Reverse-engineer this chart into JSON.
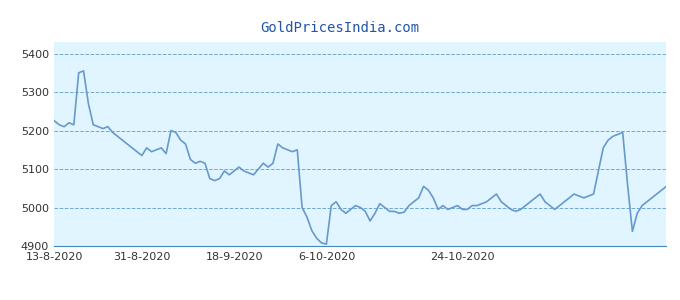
{
  "title": "GoldPricesIndia.com",
  "bg_color": "#e0f5ff",
  "line_color": "#6699cc",
  "grid_color": "#4488bb",
  "ylim": [
    4900,
    5430
  ],
  "yticks": [
    4900,
    5000,
    5100,
    5200,
    5300,
    5400
  ],
  "xtick_labels": [
    "13-8-2020",
    "31-8-2020",
    "18-9-2020",
    "6-10-2020",
    "24-10-2020"
  ],
  "prices": [
    5225,
    5215,
    5210,
    5220,
    5215,
    5350,
    5355,
    5270,
    5215,
    5210,
    5205,
    5210,
    5195,
    5185,
    5175,
    5165,
    5155,
    5145,
    5135,
    5155,
    5145,
    5150,
    5155,
    5140,
    5200,
    5195,
    5175,
    5165,
    5125,
    5115,
    5120,
    5115,
    5075,
    5070,
    5075,
    5095,
    5085,
    5095,
    5105,
    5095,
    5090,
    5085,
    5100,
    5115,
    5105,
    5115,
    5165,
    5155,
    5150,
    5145,
    5150,
    5000,
    4975,
    4940,
    4920,
    4908,
    4905,
    5005,
    5015,
    4995,
    4985,
    4995,
    5005,
    5000,
    4990,
    4965,
    4985,
    5010,
    5000,
    4990,
    4990,
    4985,
    4988,
    5005,
    5015,
    5025,
    5055,
    5045,
    5025,
    4995,
    5005,
    4995,
    5000,
    5005,
    4995,
    4995,
    5005,
    5005,
    5010,
    5015,
    5025,
    5035,
    5015,
    5005,
    4995,
    4990,
    4995,
    5005,
    5015,
    5025,
    5035,
    5015,
    5005,
    4995,
    5005,
    5015,
    5025,
    5035,
    5030,
    5025,
    5030,
    5035,
    5095,
    5155,
    5175,
    5185,
    5190,
    5195,
    5060,
    4938,
    4985,
    5005,
    5015,
    5025,
    5035,
    5045,
    5055
  ]
}
